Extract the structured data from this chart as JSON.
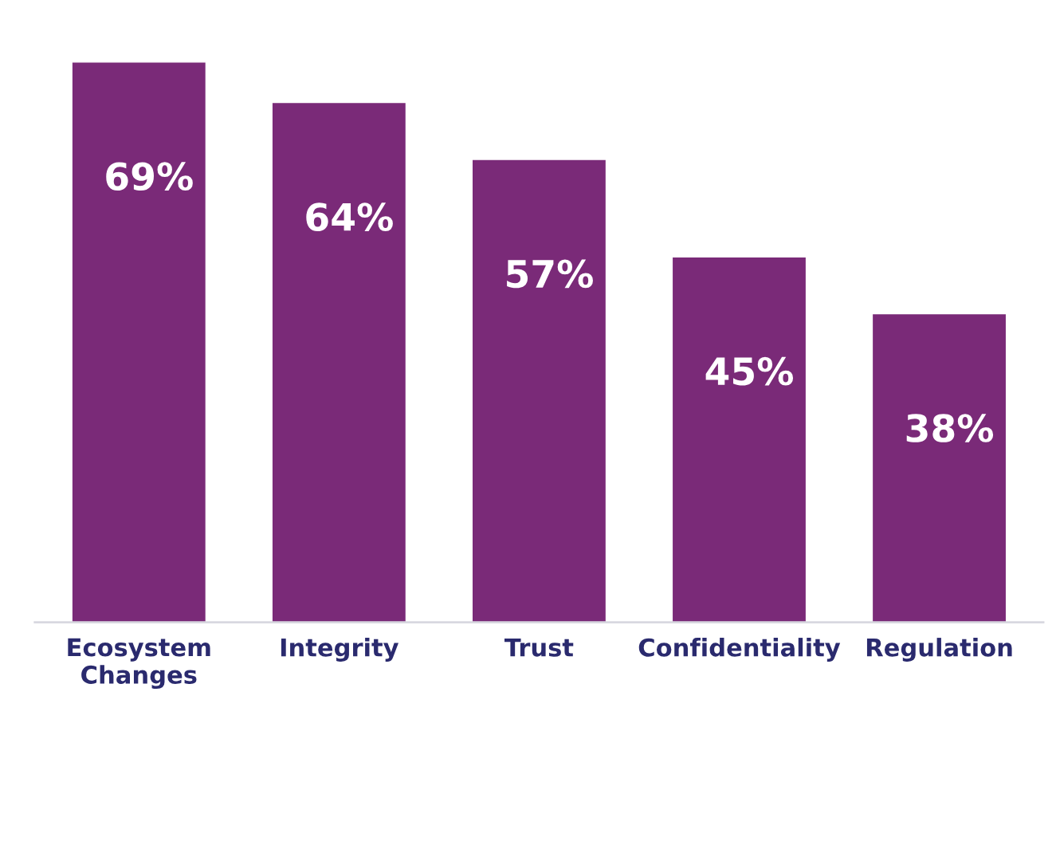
{
  "chart_data": {
    "type": "bar",
    "categories": [
      "Ecosystem\nChanges",
      "Integrity",
      "Trust",
      "Confidentiality",
      "Regulation"
    ],
    "values": [
      69,
      64,
      57,
      45,
      38
    ],
    "value_labels": [
      "69%",
      "64%",
      "57%",
      "45%",
      "38%"
    ],
    "color": "#7a2a78",
    "grid": false,
    "legend": false
  }
}
